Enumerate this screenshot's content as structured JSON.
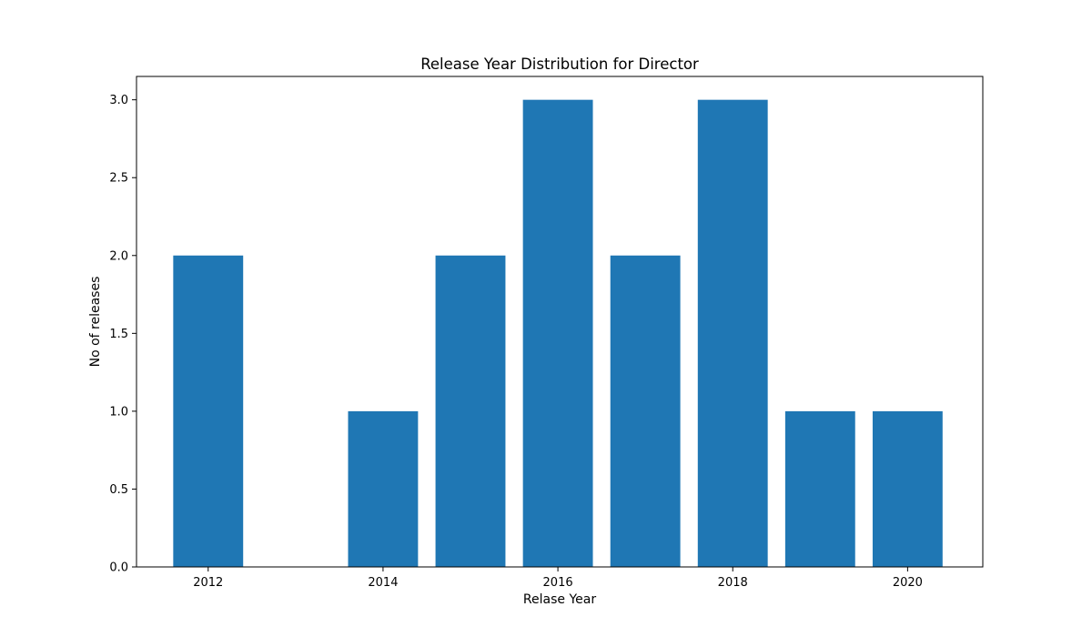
{
  "chart_data": {
    "type": "bar",
    "title": "Release Year Distribution for Director",
    "xlabel": "Relase Year",
    "ylabel": "No of releases",
    "x": [
      2012,
      2014,
      2015,
      2016,
      2017,
      2018,
      2019,
      2020
    ],
    "values": [
      2,
      1,
      2,
      3,
      2,
      3,
      1,
      1
    ],
    "bar_width": 0.8,
    "xlim": [
      2011.18,
      2020.86
    ],
    "ylim": [
      0,
      3.15
    ],
    "xticks": [
      2012,
      2014,
      2016,
      2018,
      2020
    ],
    "xtick_labels": [
      "2012",
      "2014",
      "2016",
      "2018",
      "2020"
    ],
    "yticks": [
      0,
      0.5,
      1,
      1.5,
      2,
      2.5,
      3
    ],
    "ytick_labels": [
      "0.0",
      "0.5",
      "1.0",
      "1.5",
      "2.0",
      "2.5",
      "3.0"
    ],
    "grid": false,
    "legend": "none",
    "color": "#1f77b4"
  }
}
